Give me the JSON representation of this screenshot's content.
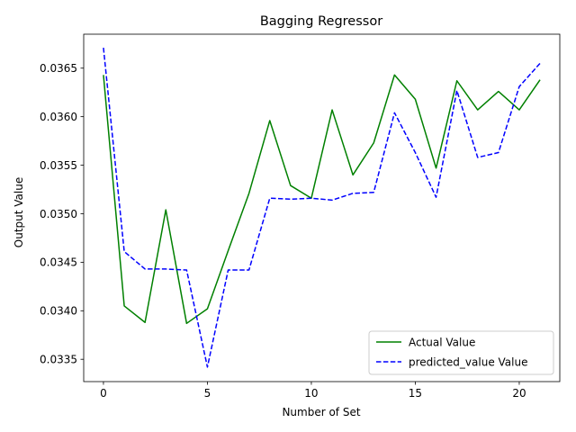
{
  "chart_data": {
    "type": "line",
    "title": "Bagging Regressor",
    "xlabel": "Number of Set",
    "ylabel": "Output Value",
    "xlim": [
      -0.95,
      21.95
    ],
    "ylim": [
      0.03327,
      0.03685
    ],
    "xticks": [
      0,
      5,
      10,
      15,
      20
    ],
    "xtick_labels": [
      "0",
      "5",
      "10",
      "15",
      "20"
    ],
    "yticks": [
      0.0335,
      0.034,
      0.0345,
      0.035,
      0.0355,
      0.036,
      0.0365
    ],
    "ytick_labels": [
      "0.0335",
      "0.0340",
      "0.0345",
      "0.0350",
      "0.0355",
      "0.0360",
      "0.0365"
    ],
    "grid": false,
    "legend_position": "lower-right",
    "x": [
      0,
      1,
      2,
      3,
      4,
      5,
      6,
      7,
      8,
      9,
      10,
      11,
      12,
      13,
      14,
      15,
      16,
      17,
      18,
      19,
      20,
      21
    ],
    "series": [
      {
        "name": "Actual Value",
        "color": "#008000",
        "dash": "solid",
        "values": [
          0.03643,
          0.03405,
          0.03388,
          0.03504,
          0.03387,
          0.03402,
          0.03462,
          0.03521,
          0.03596,
          0.03529,
          0.03516,
          0.03607,
          0.0354,
          0.03573,
          0.03643,
          0.03618,
          0.03547,
          0.03637,
          0.03607,
          0.03626,
          0.03607,
          0.03638
        ]
      },
      {
        "name": "predicted_value Value",
        "color": "#0000ff",
        "dash": "dashed",
        "values": [
          0.03671,
          0.03461,
          0.03443,
          0.03443,
          0.03442,
          0.03342,
          0.03442,
          0.03442,
          0.03516,
          0.03515,
          0.03516,
          0.03514,
          0.03521,
          0.03522,
          0.03604,
          0.03563,
          0.03517,
          0.03627,
          0.03558,
          0.03563,
          0.03631,
          0.03655
        ]
      }
    ]
  }
}
